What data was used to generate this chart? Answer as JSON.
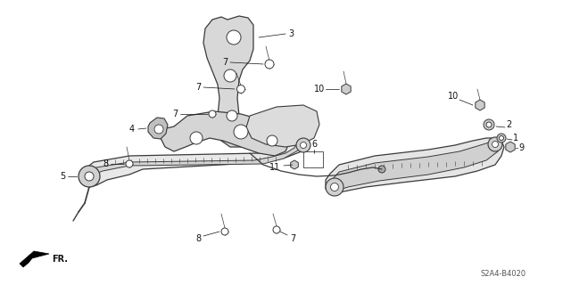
{
  "part_number": "S2A4-B4020",
  "fr_label": "FR.",
  "background_color": "#ffffff",
  "line_color": "#3a3a3a",
  "text_color": "#111111",
  "fig_width": 6.4,
  "fig_height": 3.2,
  "dpi": 100
}
